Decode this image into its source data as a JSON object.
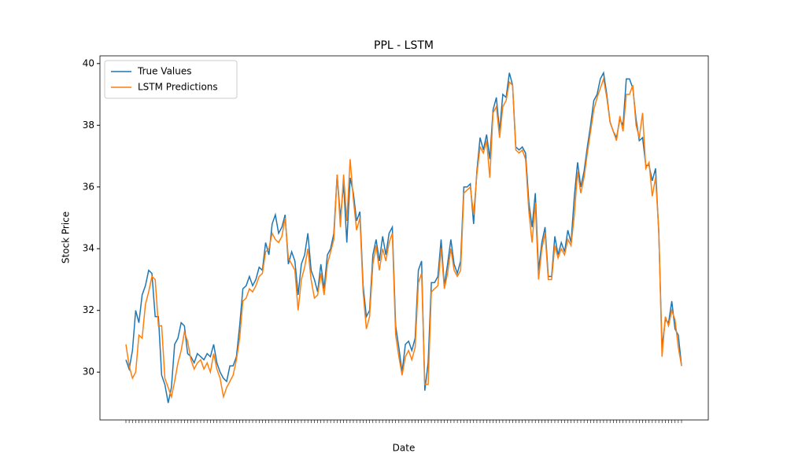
{
  "chart_data": {
    "type": "line",
    "title": "PPL - LSTM",
    "x_label": "Date",
    "y_label": "Stock Price",
    "categories": [
      null,
      null,
      null,
      null,
      null,
      null,
      null,
      null,
      null,
      null,
      null,
      null,
      null,
      null,
      null,
      null,
      null,
      null,
      null,
      null,
      null,
      null,
      null,
      null,
      null,
      null,
      null,
      null,
      null,
      null,
      null,
      null,
      null,
      null,
      null,
      null,
      null,
      null,
      null,
      null,
      null,
      null,
      null,
      null,
      null,
      null,
      null,
      null,
      null,
      null,
      null,
      null,
      null,
      null,
      null,
      null,
      null,
      null,
      null,
      null,
      null,
      null,
      null,
      null,
      null,
      null,
      null,
      null,
      null,
      null,
      null,
      null,
      null,
      null,
      null,
      null,
      null,
      null,
      null,
      null,
      null,
      null,
      null,
      null,
      null,
      null,
      null,
      null,
      null,
      null,
      null,
      null,
      null,
      null,
      null,
      null,
      null,
      null,
      null,
      null,
      null,
      null,
      null,
      null,
      null,
      null,
      null,
      null,
      null,
      null,
      null,
      null,
      null,
      null,
      null,
      null,
      null,
      null,
      null,
      null,
      null,
      null,
      null,
      null,
      null,
      null,
      null,
      null,
      null,
      null,
      null,
      null,
      null,
      null,
      null,
      null,
      null,
      null,
      null,
      null,
      null,
      null,
      null,
      null,
      null,
      null,
      null,
      null,
      null,
      null,
      null,
      null,
      null,
      null,
      null,
      null,
      null,
      null,
      null,
      null,
      null,
      null,
      null,
      null,
      null,
      null,
      null,
      null,
      null,
      null,
      null,
      null
    ],
    "series": [
      {
        "name": "True Values",
        "color": "#1f77b4",
        "values": [
          30.4,
          30.1,
          30.7,
          32.0,
          31.6,
          32.5,
          32.8,
          33.3,
          33.2,
          31.8,
          31.8,
          29.9,
          29.6,
          29.0,
          29.5,
          30.9,
          31.1,
          31.6,
          31.5,
          30.6,
          30.5,
          30.3,
          30.6,
          30.5,
          30.4,
          30.6,
          30.5,
          30.9,
          30.3,
          30.0,
          29.8,
          29.7,
          30.2,
          30.2,
          30.5,
          31.5,
          32.7,
          32.8,
          33.1,
          32.8,
          33.0,
          33.4,
          33.3,
          34.2,
          33.8,
          34.8,
          35.1,
          34.5,
          34.7,
          35.1,
          33.5,
          33.9,
          33.6,
          32.5,
          33.5,
          33.8,
          34.5,
          33.3,
          33.0,
          32.6,
          33.5,
          32.7,
          33.8,
          34.0,
          34.5,
          36.4,
          35.0,
          36.1,
          34.2,
          36.3,
          35.8,
          34.9,
          35.2,
          32.8,
          31.8,
          32.0,
          33.8,
          34.3,
          33.6,
          34.4,
          33.8,
          34.5,
          34.7,
          31.5,
          30.8,
          30.0,
          30.9,
          31.0,
          30.7,
          31.1,
          33.3,
          33.6,
          29.4,
          30.3,
          32.9,
          32.9,
          33.1,
          34.3,
          32.8,
          33.5,
          34.3,
          33.5,
          33.2,
          33.6,
          36.0,
          36.0,
          36.1,
          34.8,
          36.5,
          37.6,
          37.2,
          37.7,
          36.9,
          38.5,
          38.9,
          37.8,
          39.0,
          38.9,
          39.7,
          39.3,
          37.3,
          37.2,
          37.3,
          37.1,
          35.5,
          34.7,
          35.8,
          33.3,
          34.2,
          34.7,
          33.1,
          33.1,
          34.4,
          33.8,
          34.2,
          33.9,
          34.6,
          34.2,
          35.7,
          36.8,
          36.0,
          36.5,
          37.3,
          38.0,
          38.8,
          39.0,
          39.5,
          39.7,
          39.0,
          38.1,
          37.8,
          37.6,
          38.2,
          38.0,
          39.5,
          39.5,
          39.2,
          38.2,
          37.5,
          37.6,
          36.7,
          36.7,
          36.2,
          36.6,
          34.5,
          30.8,
          31.7,
          31.6,
          32.3,
          31.4,
          31.2,
          30.2
        ]
      },
      {
        "name": "LSTM Predictions",
        "color": "#ff7f0e",
        "values": [
          30.9,
          30.2,
          29.8,
          30.0,
          31.2,
          31.1,
          32.2,
          32.6,
          33.1,
          33.0,
          31.5,
          31.5,
          29.8,
          29.5,
          29.2,
          29.7,
          30.3,
          30.7,
          31.3,
          31.0,
          30.4,
          30.1,
          30.3,
          30.4,
          30.1,
          30.3,
          30.0,
          30.6,
          30.1,
          29.8,
          29.2,
          29.5,
          29.7,
          29.9,
          30.4,
          31.1,
          32.3,
          32.4,
          32.7,
          32.6,
          32.8,
          33.1,
          33.2,
          33.9,
          34.0,
          34.5,
          34.3,
          34.2,
          34.4,
          35.0,
          33.7,
          33.5,
          33.3,
          32.0,
          33.0,
          33.4,
          34.0,
          33.0,
          32.4,
          32.5,
          33.2,
          32.5,
          33.5,
          33.9,
          34.3,
          36.4,
          34.7,
          36.4,
          34.9,
          36.9,
          35.6,
          34.6,
          35.0,
          32.6,
          31.4,
          31.8,
          33.5,
          34.1,
          33.3,
          34.0,
          33.6,
          34.2,
          34.5,
          31.2,
          30.5,
          29.9,
          30.5,
          30.7,
          30.4,
          30.8,
          32.9,
          33.2,
          29.6,
          29.6,
          32.6,
          32.7,
          32.8,
          34.0,
          32.7,
          33.2,
          34.0,
          33.3,
          33.1,
          33.3,
          35.8,
          35.9,
          36.0,
          35.1,
          36.4,
          37.3,
          37.1,
          37.5,
          36.3,
          38.4,
          38.6,
          37.6,
          38.6,
          38.8,
          39.4,
          39.3,
          37.2,
          37.1,
          37.2,
          36.9,
          35.2,
          34.2,
          35.5,
          33.0,
          34.0,
          34.5,
          33.0,
          33.0,
          34.1,
          33.7,
          34.0,
          33.8,
          34.3,
          34.1,
          35.1,
          36.5,
          35.8,
          36.3,
          37.1,
          37.8,
          38.5,
          38.9,
          39.2,
          39.5,
          38.9,
          38.1,
          37.8,
          37.5,
          38.3,
          37.8,
          39.0,
          39.0,
          39.3,
          38.0,
          37.6,
          38.4,
          36.6,
          36.8,
          35.7,
          36.3,
          34.6,
          30.5,
          31.8,
          31.5,
          32.0,
          31.7,
          30.8,
          30.2
        ]
      }
    ],
    "ylim": [
      28.45,
      40.25
    ],
    "yticks": [
      30,
      32,
      34,
      36,
      38,
      40
    ],
    "legend": "upper left"
  }
}
